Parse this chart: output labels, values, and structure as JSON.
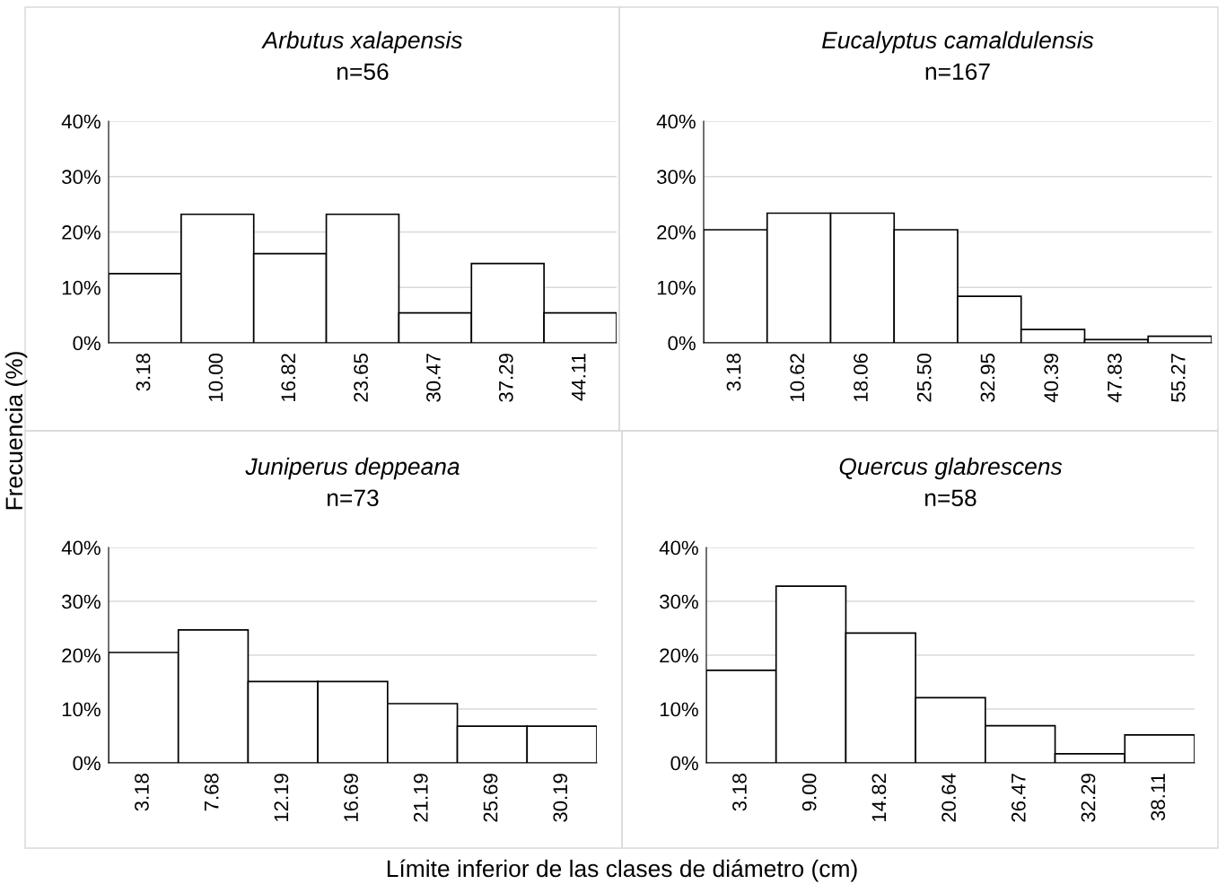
{
  "chart_data": [
    {
      "type": "bar",
      "title": "Arbutus xalapensis",
      "subtitle": "n=56",
      "ylabel": "Frecuencia (%)",
      "categories": [
        "3.18",
        "10.00",
        "16.82",
        "23.65",
        "30.47",
        "37.29",
        "44.11"
      ],
      "values": [
        12.5,
        23.2,
        16.1,
        23.2,
        5.4,
        14.3,
        5.4
      ],
      "color": "#ffffff",
      "ylim": [
        0,
        40
      ],
      "yticks": [
        {
          "value": 0,
          "label": "0%"
        },
        {
          "value": 10,
          "label": "10%"
        },
        {
          "value": 20,
          "label": "20%"
        },
        {
          "value": 30,
          "label": "30%"
        },
        {
          "value": 40,
          "label": "40%"
        }
      ],
      "grid": "y"
    },
    {
      "type": "bar",
      "title": "Eucalyptus camaldulensis",
      "subtitle": "n=167",
      "categories": [
        "3.18",
        "10.62",
        "18.06",
        "25.50",
        "32.95",
        "40.39",
        "47.83",
        "55.27"
      ],
      "values": [
        20.4,
        23.4,
        23.4,
        20.4,
        8.4,
        2.4,
        0.6,
        1.2
      ],
      "color": "#ffffff",
      "ylim": [
        0,
        40
      ],
      "yticks": [
        {
          "value": 0,
          "label": "0%"
        },
        {
          "value": 10,
          "label": "10%"
        },
        {
          "value": 20,
          "label": "20%"
        },
        {
          "value": 30,
          "label": "30%"
        },
        {
          "value": 40,
          "label": "40%"
        }
      ],
      "grid": "y"
    },
    {
      "type": "bar",
      "title": "Juniperus deppeana",
      "subtitle": "n=73",
      "xlabel": "Límite inferior de las clases de diámetro (cm)",
      "categories": [
        "3.18",
        "7.68",
        "12.19",
        "16.69",
        "21.19",
        "25.69",
        "30.19"
      ],
      "values": [
        20.5,
        24.7,
        15.1,
        15.1,
        11.0,
        6.8,
        6.8
      ],
      "color": "#ffffff",
      "ylim": [
        0,
        40
      ],
      "yticks": [
        {
          "value": 0,
          "label": "0%"
        },
        {
          "value": 10,
          "label": "10%"
        },
        {
          "value": 20,
          "label": "20%"
        },
        {
          "value": 30,
          "label": "30%"
        },
        {
          "value": 40,
          "label": "40%"
        }
      ],
      "grid": "y"
    },
    {
      "type": "bar",
      "title": "Quercus glabrescens",
      "subtitle": "n=58",
      "categories": [
        "3.18",
        "9.00",
        "14.82",
        "20.64",
        "26.47",
        "32.29",
        "38.11"
      ],
      "values": [
        17.2,
        32.8,
        24.1,
        12.1,
        6.9,
        1.7,
        5.2
      ],
      "color": "#ffffff",
      "ylim": [
        0,
        40
      ],
      "yticks": [
        {
          "value": 0,
          "label": "0%"
        },
        {
          "value": 10,
          "label": "10%"
        },
        {
          "value": 20,
          "label": "20%"
        },
        {
          "value": 30,
          "label": "30%"
        },
        {
          "value": 40,
          "label": "40%"
        }
      ],
      "grid": "y"
    }
  ]
}
